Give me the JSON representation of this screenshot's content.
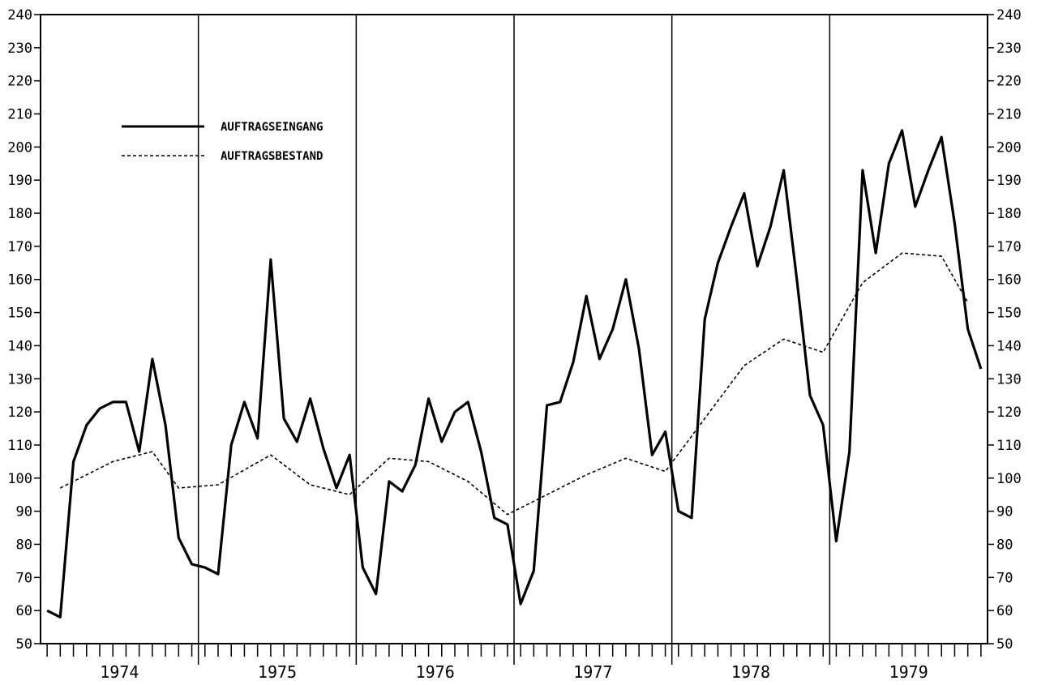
{
  "chart_data": {
    "type": "line",
    "title": "",
    "xlabel": "",
    "ylabel": "",
    "ylim": [
      50,
      240
    ],
    "yticks": [
      50,
      60,
      70,
      80,
      90,
      100,
      110,
      120,
      130,
      140,
      150,
      160,
      170,
      180,
      190,
      200,
      210,
      220,
      230,
      240
    ],
    "x_unit": "month",
    "years": [
      "1974",
      "1975",
      "1976",
      "1977",
      "1978",
      "1979"
    ],
    "legend": {
      "placement": "upper-left",
      "entries": [
        "AUFTRAGSEINGANG",
        "AUFTRAGSBESTAND"
      ]
    },
    "series": [
      {
        "name": "AUFTRAGSEINGANG",
        "style": "solid",
        "color": "#000000",
        "values": [
          60,
          58,
          105,
          116,
          121,
          123,
          123,
          108,
          136,
          116,
          82,
          74,
          73,
          71,
          110,
          123,
          112,
          166,
          118,
          111,
          124,
          109,
          97,
          107,
          73,
          65,
          99,
          96,
          104,
          124,
          111,
          120,
          123,
          108,
          88,
          86,
          62,
          72,
          122,
          123,
          135,
          155,
          136,
          145,
          160,
          139,
          107,
          114,
          90,
          88,
          148,
          165,
          176,
          186,
          164,
          176,
          193,
          160,
          125,
          116,
          81,
          108,
          193,
          168,
          195,
          205,
          182,
          193,
          203,
          177,
          145,
          133
        ]
      },
      {
        "name": "AUFTRAGSBESTAND",
        "style": "dashed",
        "color": "#000000",
        "months": [
          1,
          5,
          8,
          10,
          13,
          17,
          20,
          23,
          26,
          29,
          32,
          35,
          38,
          41,
          44,
          47,
          50,
          53,
          56,
          59,
          62,
          65,
          68,
          70
        ],
        "values": [
          97,
          105,
          108,
          97,
          98,
          107,
          98,
          95,
          106,
          105,
          99,
          89,
          95,
          101,
          106,
          102,
          118,
          134,
          142,
          138,
          159,
          168,
          167,
          153
        ]
      }
    ]
  }
}
